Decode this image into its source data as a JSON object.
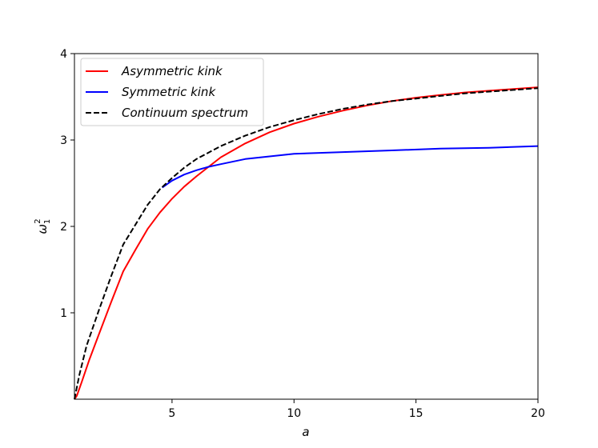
{
  "chart_data": {
    "type": "line",
    "xlabel": "a",
    "ylabel_base": "ω",
    "ylabel_sub": "1",
    "ylabel_sup": "2",
    "xlim": [
      1,
      20
    ],
    "ylim": [
      0,
      4
    ],
    "xticks": [
      5,
      10,
      15,
      20
    ],
    "yticks": [
      1,
      2,
      3,
      4
    ],
    "grid": false,
    "legend_position": "upper-left",
    "series": [
      {
        "name": "Asymmetric kink",
        "color": "#ff0000",
        "style": "solid",
        "x": [
          1.0,
          1.1,
          1.3,
          1.6,
          2.0,
          2.5,
          3.0,
          3.5,
          4.0,
          4.5,
          5.0,
          5.5,
          6.0,
          7.0,
          8.0,
          9.0,
          10.0,
          11.0,
          12.0,
          13.0,
          14.0,
          15.0,
          16.0,
          17.0,
          18.0,
          19.0,
          20.0
        ],
        "y": [
          0.0,
          0.04,
          0.2,
          0.45,
          0.75,
          1.12,
          1.48,
          1.73,
          1.97,
          2.16,
          2.32,
          2.46,
          2.58,
          2.8,
          2.96,
          3.09,
          3.19,
          3.27,
          3.34,
          3.4,
          3.45,
          3.49,
          3.52,
          3.55,
          3.57,
          3.59,
          3.61
        ]
      },
      {
        "name": "Symmetric kink",
        "color": "#0000ff",
        "style": "solid",
        "x": [
          4.6,
          5.0,
          5.5,
          6.0,
          6.5,
          7.0,
          8.0,
          9.0,
          10.0,
          12.0,
          14.0,
          16.0,
          18.0,
          20.0
        ],
        "y": [
          2.45,
          2.53,
          2.6,
          2.65,
          2.69,
          2.72,
          2.78,
          2.81,
          2.84,
          2.86,
          2.88,
          2.9,
          2.91,
          2.93
        ]
      },
      {
        "name": "Continuum spectrum",
        "color": "#000000",
        "style": "dashed",
        "x": [
          1.0,
          1.2,
          1.5,
          2.0,
          2.5,
          3.0,
          3.5,
          4.0,
          4.5,
          5.0,
          5.5,
          6.0,
          7.0,
          8.0,
          9.0,
          10.0,
          11.0,
          12.0,
          13.0,
          14.0,
          15.0,
          16.0,
          17.0,
          18.0,
          19.0,
          20.0
        ],
        "y": [
          0.0,
          0.28,
          0.62,
          1.03,
          1.42,
          1.79,
          2.02,
          2.25,
          2.43,
          2.56,
          2.68,
          2.78,
          2.93,
          3.05,
          3.15,
          3.23,
          3.3,
          3.36,
          3.41,
          3.45,
          3.48,
          3.51,
          3.54,
          3.56,
          3.58,
          3.6
        ]
      }
    ]
  }
}
